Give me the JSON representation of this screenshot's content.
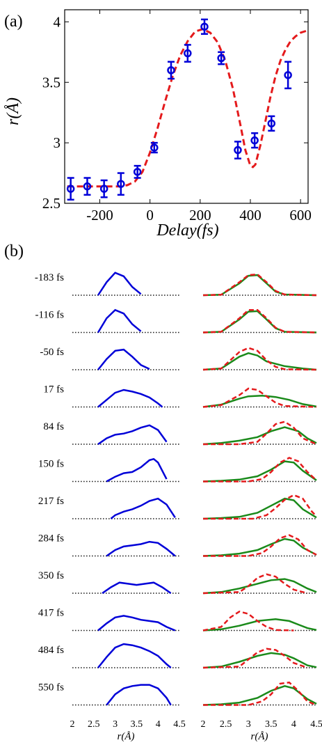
{
  "panel_a": {
    "label": "(a)",
    "xlabel": "Delay(fs)",
    "ylabel": "r(Å)",
    "chart_data": {
      "type": "scatter",
      "x_ticks": [
        -200,
        0,
        200,
        400,
        600
      ],
      "y_ticks": [
        2.5,
        3,
        3.5,
        4
      ],
      "xlim": [
        -340,
        630
      ],
      "ylim": [
        2.5,
        4.1
      ],
      "grid": false,
      "points": {
        "x": [
          -316,
          -250,
          -183,
          -116,
          -50,
          17,
          84,
          150,
          217,
          284,
          350,
          417,
          484,
          550
        ],
        "y": [
          2.62,
          2.64,
          2.62,
          2.66,
          2.76,
          2.96,
          3.6,
          3.74,
          3.96,
          3.7,
          2.94,
          3.02,
          3.16,
          3.56
        ],
        "err": [
          0.09,
          0.07,
          0.07,
          0.09,
          0.05,
          0.04,
          0.07,
          0.07,
          0.06,
          0.05,
          0.07,
          0.06,
          0.06,
          0.11
        ],
        "color": "#0000d8"
      },
      "fit": {
        "x": [
          -330,
          -250,
          -180,
          -120,
          -90,
          -60,
          -30,
          0,
          30,
          60,
          90,
          120,
          150,
          180,
          210,
          240,
          270,
          300,
          330,
          360,
          380,
          400,
          410,
          420,
          440,
          460,
          480,
          500,
          520,
          540,
          560,
          580,
          600,
          630
        ],
        "y": [
          2.64,
          2.64,
          2.64,
          2.64,
          2.65,
          2.68,
          2.76,
          2.92,
          3.12,
          3.34,
          3.55,
          3.72,
          3.84,
          3.92,
          3.94,
          3.91,
          3.83,
          3.68,
          3.45,
          3.15,
          2.94,
          2.81,
          2.8,
          2.82,
          2.98,
          3.18,
          3.38,
          3.55,
          3.68,
          3.77,
          3.84,
          3.88,
          3.91,
          3.93
        ],
        "color": "#e41a1c"
      }
    }
  },
  "panel_b": {
    "label": "(b)",
    "xlabel": "r(Å)",
    "colors": {
      "measured": "#0000d8",
      "fit_red": "#e41a1c",
      "fit_green": "#1a8a1a",
      "baseline": "#222222"
    },
    "chart_data": {
      "type": "line",
      "x_ticks": [
        "2",
        "2.5",
        "3",
        "3.5",
        "4",
        "4.5"
      ],
      "xlim": [
        2,
        4.5
      ],
      "rows": [
        {
          "label": "-183 fs",
          "left": {
            "x": [
              2.6,
              2.8,
              3.0,
              3.2,
              3.4,
              3.6
            ],
            "y": [
              0.0,
              0.55,
              0.95,
              0.8,
              0.35,
              0.05
            ]
          },
          "green": {
            "x": [
              2.0,
              2.4,
              2.8,
              3.0,
              3.2,
              3.4,
              3.6,
              3.8,
              4.5
            ],
            "y": [
              0.0,
              0.02,
              0.5,
              0.82,
              0.85,
              0.5,
              0.15,
              0.03,
              0.0
            ]
          },
          "red": {
            "x": [
              2.0,
              2.4,
              2.8,
              3.0,
              3.2,
              3.4,
              3.6,
              3.8,
              4.5
            ],
            "y": [
              0.0,
              0.02,
              0.55,
              0.85,
              0.88,
              0.55,
              0.18,
              0.03,
              0.0
            ]
          }
        },
        {
          "label": "-116 fs",
          "left": {
            "x": [
              2.6,
              2.8,
              3.0,
              3.2,
              3.4,
              3.6
            ],
            "y": [
              0.0,
              0.6,
              0.95,
              0.8,
              0.35,
              0.05
            ]
          },
          "green": {
            "x": [
              2.0,
              2.4,
              2.8,
              3.0,
              3.2,
              3.4,
              3.6,
              3.8,
              4.5
            ],
            "y": [
              0.0,
              0.03,
              0.55,
              0.88,
              0.9,
              0.55,
              0.18,
              0.03,
              0.0
            ]
          },
          "red": {
            "x": [
              2.0,
              2.4,
              2.8,
              3.0,
              3.2,
              3.4,
              3.6,
              3.8,
              4.5
            ],
            "y": [
              0.0,
              0.03,
              0.6,
              0.95,
              0.95,
              0.6,
              0.2,
              0.03,
              0.0
            ]
          }
        },
        {
          "label": "-50 fs",
          "left": {
            "x": [
              2.6,
              2.8,
              3.0,
              3.2,
              3.4,
              3.6,
              3.8
            ],
            "y": [
              0.0,
              0.45,
              0.8,
              0.85,
              0.55,
              0.2,
              0.03
            ]
          },
          "green": {
            "x": [
              2.0,
              2.4,
              2.8,
              3.0,
              3.2,
              3.4,
              3.8,
              4.2,
              4.5
            ],
            "y": [
              0.0,
              0.05,
              0.55,
              0.7,
              0.6,
              0.35,
              0.15,
              0.05,
              0.0
            ]
          },
          "red": {
            "x": [
              2.0,
              2.4,
              2.8,
              3.0,
              3.2,
              3.4,
              3.6,
              3.8,
              4.5
            ],
            "y": [
              0.0,
              0.05,
              0.75,
              0.92,
              0.8,
              0.4,
              0.12,
              0.02,
              0.0
            ]
          }
        },
        {
          "label": "17 fs",
          "left": {
            "x": [
              2.6,
              2.8,
              3.0,
              3.2,
              3.4,
              3.6,
              3.8,
              4.0,
              4.1
            ],
            "y": [
              0.0,
              0.3,
              0.6,
              0.72,
              0.65,
              0.55,
              0.4,
              0.15,
              0.0
            ]
          },
          "green": {
            "x": [
              2.0,
              2.4,
              2.8,
              3.0,
              3.3,
              3.6,
              3.9,
              4.2,
              4.5
            ],
            "y": [
              0.0,
              0.1,
              0.35,
              0.45,
              0.48,
              0.42,
              0.3,
              0.12,
              0.02
            ]
          },
          "red": {
            "x": [
              2.0,
              2.4,
              2.8,
              3.0,
              3.2,
              3.4,
              3.6,
              3.8,
              4.5
            ],
            "y": [
              0.0,
              0.08,
              0.5,
              0.78,
              0.72,
              0.45,
              0.18,
              0.04,
              0.0
            ]
          }
        },
        {
          "label": "84 fs",
          "left": {
            "x": [
              2.6,
              2.8,
              3.0,
              3.2,
              3.4,
              3.6,
              3.8,
              4.0,
              4.2
            ],
            "y": [
              0.0,
              0.25,
              0.4,
              0.45,
              0.55,
              0.7,
              0.8,
              0.6,
              0.1
            ]
          },
          "green": {
            "x": [
              2.0,
              2.4,
              2.8,
              3.2,
              3.5,
              3.8,
              4.1,
              4.3,
              4.5
            ],
            "y": [
              0.0,
              0.05,
              0.15,
              0.3,
              0.55,
              0.72,
              0.55,
              0.25,
              0.05
            ]
          },
          "red": {
            "x": [
              2.0,
              2.8,
              3.2,
              3.4,
              3.6,
              3.8,
              4.0,
              4.2,
              4.5
            ],
            "y": [
              0.0,
              0.0,
              0.1,
              0.45,
              0.85,
              0.95,
              0.7,
              0.25,
              0.0
            ]
          }
        },
        {
          "label": "150 fs",
          "left": {
            "x": [
              2.8,
              3.0,
              3.2,
              3.4,
              3.6,
              3.8,
              3.9,
              4.0,
              4.2
            ],
            "y": [
              0.0,
              0.2,
              0.35,
              0.4,
              0.6,
              0.9,
              0.95,
              0.8,
              0.1
            ]
          },
          "green": {
            "x": [
              2.0,
              2.4,
              2.8,
              3.2,
              3.5,
              3.8,
              4.0,
              4.2,
              4.5
            ],
            "y": [
              0.0,
              0.03,
              0.08,
              0.22,
              0.5,
              0.85,
              0.8,
              0.45,
              0.05
            ]
          },
          "red": {
            "x": [
              2.0,
              3.0,
              3.3,
              3.5,
              3.7,
              3.9,
              4.1,
              4.3,
              4.5
            ],
            "y": [
              0.0,
              0.0,
              0.1,
              0.4,
              0.8,
              1.0,
              0.85,
              0.4,
              0.05
            ]
          }
        },
        {
          "label": "217 fs",
          "left": {
            "x": [
              2.9,
              3.0,
              3.2,
              3.4,
              3.6,
              3.8,
              4.0,
              4.2,
              4.4
            ],
            "y": [
              0.0,
              0.15,
              0.3,
              0.4,
              0.55,
              0.75,
              0.85,
              0.6,
              0.05
            ]
          },
          "green": {
            "x": [
              2.0,
              2.4,
              2.8,
              3.2,
              3.5,
              3.8,
              4.0,
              4.2,
              4.5
            ],
            "y": [
              0.0,
              0.03,
              0.08,
              0.25,
              0.55,
              0.85,
              0.78,
              0.4,
              0.05
            ]
          },
          "red": {
            "x": [
              2.0,
              3.1,
              3.4,
              3.6,
              3.8,
              4.0,
              4.2,
              4.4,
              4.5
            ],
            "y": [
              0.0,
              0.0,
              0.15,
              0.45,
              0.8,
              1.0,
              0.85,
              0.3,
              0.1
            ]
          }
        },
        {
          "label": "284 fs",
          "left": {
            "x": [
              2.8,
              3.0,
              3.2,
              3.4,
              3.6,
              3.8,
              4.0,
              4.2,
              4.4
            ],
            "y": [
              0.0,
              0.25,
              0.4,
              0.45,
              0.5,
              0.6,
              0.55,
              0.3,
              0.0
            ]
          },
          "green": {
            "x": [
              2.0,
              2.4,
              2.8,
              3.2,
              3.5,
              3.8,
              4.0,
              4.2,
              4.5
            ],
            "y": [
              0.0,
              0.03,
              0.1,
              0.25,
              0.5,
              0.72,
              0.65,
              0.35,
              0.05
            ]
          },
          "red": {
            "x": [
              2.0,
              3.0,
              3.3,
              3.5,
              3.7,
              3.9,
              4.1,
              4.3,
              4.5
            ],
            "y": [
              0.0,
              0.0,
              0.12,
              0.4,
              0.75,
              0.88,
              0.7,
              0.25,
              0.05
            ]
          }
        },
        {
          "label": "350 fs",
          "left": {
            "x": [
              2.7,
              2.9,
              3.1,
              3.3,
              3.5,
              3.7,
              3.9,
              4.1,
              4.3
            ],
            "y": [
              0.0,
              0.25,
              0.45,
              0.4,
              0.35,
              0.4,
              0.45,
              0.25,
              0.0
            ]
          },
          "green": {
            "x": [
              2.0,
              2.4,
              2.8,
              3.2,
              3.5,
              3.8,
              4.0,
              4.3,
              4.5
            ],
            "y": [
              0.0,
              0.05,
              0.2,
              0.4,
              0.55,
              0.6,
              0.5,
              0.2,
              0.05
            ]
          },
          "red": {
            "x": [
              2.0,
              2.8,
              3.0,
              3.2,
              3.4,
              3.6,
              3.8,
              4.0,
              4.3
            ],
            "y": [
              0.0,
              0.05,
              0.3,
              0.65,
              0.8,
              0.7,
              0.4,
              0.15,
              0.0
            ]
          }
        },
        {
          "label": "417 fs",
          "left": {
            "x": [
              2.6,
              2.8,
              3.0,
              3.2,
              3.4,
              3.6,
              3.8,
              4.0,
              4.2,
              4.4
            ],
            "y": [
              0.0,
              0.3,
              0.55,
              0.62,
              0.55,
              0.45,
              0.4,
              0.35,
              0.15,
              0.0
            ]
          },
          "green": {
            "x": [
              2.0,
              2.4,
              2.8,
              3.2,
              3.6,
              3.9,
              4.1,
              4.3,
              4.5
            ],
            "y": [
              0.0,
              0.05,
              0.2,
              0.4,
              0.48,
              0.4,
              0.25,
              0.1,
              0.02
            ]
          },
          "red": {
            "x": [
              2.0,
              2.4,
              2.6,
              2.8,
              3.0,
              3.2,
              3.4,
              3.6,
              4.0
            ],
            "y": [
              0.0,
              0.15,
              0.55,
              0.8,
              0.7,
              0.4,
              0.15,
              0.02,
              0.0
            ]
          }
        },
        {
          "label": "484 fs",
          "left": {
            "x": [
              2.6,
              2.8,
              3.0,
              3.2,
              3.4,
              3.6,
              3.8,
              4.0,
              4.2,
              4.3
            ],
            "y": [
              0.0,
              0.45,
              0.85,
              1.0,
              0.95,
              0.85,
              0.7,
              0.5,
              0.15,
              0.0
            ]
          },
          "green": {
            "x": [
              2.0,
              2.4,
              2.8,
              3.2,
              3.5,
              3.8,
              4.0,
              4.3,
              4.5
            ],
            "y": [
              0.0,
              0.05,
              0.25,
              0.5,
              0.62,
              0.55,
              0.4,
              0.1,
              0.02
            ]
          },
          "red": {
            "x": [
              2.0,
              2.8,
              3.0,
              3.2,
              3.4,
              3.6,
              3.8,
              4.0,
              4.3
            ],
            "y": [
              0.0,
              0.05,
              0.35,
              0.65,
              0.8,
              0.75,
              0.5,
              0.2,
              0.0
            ]
          }
        },
        {
          "label": "550 fs",
          "left": {
            "x": [
              2.8,
              3.0,
              3.2,
              3.4,
              3.6,
              3.8,
              4.0,
              4.2,
              4.3
            ],
            "y": [
              0.0,
              0.45,
              0.7,
              0.8,
              0.85,
              0.85,
              0.7,
              0.3,
              0.0
            ]
          },
          "green": {
            "x": [
              2.0,
              2.4,
              2.8,
              3.2,
              3.5,
              3.8,
              4.0,
              4.3,
              4.5
            ],
            "y": [
              0.0,
              0.03,
              0.1,
              0.3,
              0.6,
              0.8,
              0.7,
              0.25,
              0.05
            ]
          },
          "red": {
            "x": [
              2.0,
              3.0,
              3.3,
              3.5,
              3.7,
              3.9,
              4.1,
              4.3,
              4.5
            ],
            "y": [
              0.0,
              0.0,
              0.15,
              0.45,
              0.9,
              0.95,
              0.6,
              0.15,
              0.0
            ]
          }
        }
      ]
    }
  }
}
